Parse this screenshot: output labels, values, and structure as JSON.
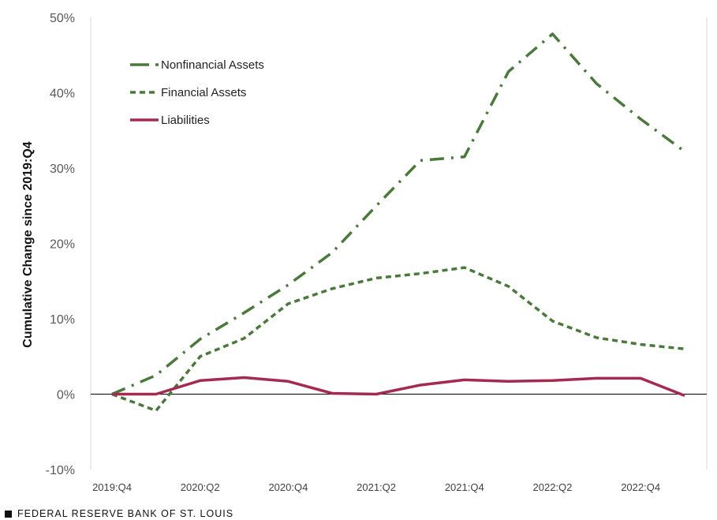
{
  "chart_data": {
    "type": "line",
    "ylabel": "Cumulative Change since 2019:Q4",
    "ylim": [
      -10,
      50
    ],
    "yticks": [
      -10,
      0,
      10,
      20,
      30,
      40,
      50
    ],
    "ytick_labels": [
      "-10%",
      "0%",
      "10%",
      "20%",
      "30%",
      "40%",
      "50%"
    ],
    "x": [
      "2019:Q4",
      "2020:Q1",
      "2020:Q2",
      "2020:Q3",
      "2020:Q4",
      "2021:Q1",
      "2021:Q2",
      "2021:Q3",
      "2021:Q4",
      "2022:Q1",
      "2022:Q2",
      "2022:Q3",
      "2022:Q4",
      "2023:Q1"
    ],
    "xtick_labels": [
      "2019:Q4",
      "2020:Q2",
      "2020:Q4",
      "2021:Q2",
      "2021:Q4",
      "2022:Q2",
      "2022:Q4"
    ],
    "grid": false,
    "zero_line": true,
    "legend_position": "top-left",
    "series": [
      {
        "name": "Nonfinancial Assets",
        "style": "dash-dot",
        "color": "#4a7a3a",
        "values": [
          0,
          2.5,
          7.3,
          10.8,
          14.5,
          18.8,
          25.0,
          31.0,
          31.5,
          42.8,
          47.8,
          41.2,
          36.5,
          32.2
        ]
      },
      {
        "name": "Financial Assets",
        "style": "dashed",
        "color": "#4a7a3a",
        "values": [
          0,
          -2.2,
          5.0,
          7.4,
          12.0,
          14.0,
          15.4,
          16.0,
          16.8,
          14.3,
          9.7,
          7.5,
          6.6,
          6.0
        ]
      },
      {
        "name": "Liabilities",
        "style": "solid",
        "color": "#a52a52",
        "values": [
          0,
          0,
          1.8,
          2.2,
          1.7,
          0.1,
          0.0,
          1.2,
          1.9,
          1.7,
          1.8,
          2.1,
          2.1,
          -0.2
        ]
      }
    ]
  },
  "footer": {
    "source": "FEDERAL RESERVE BANK OF ST. LOUIS"
  }
}
